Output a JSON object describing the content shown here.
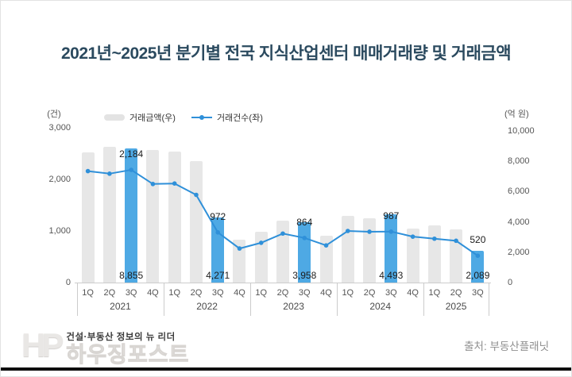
{
  "title": "2021년~2025년 분기별 전국 지식산업센터 매매거래량 및 거래금액",
  "legend": {
    "bar_label": "거래금액(우)",
    "line_label": "거래건수(좌)"
  },
  "axes": {
    "left_unit": "(건)",
    "right_unit": "(억 원)"
  },
  "chart_data": {
    "type": "bar",
    "subtype": "combo-bar-line",
    "title": "2021년~2025년 분기별 전국 지식산업센터 매매거래량 및 거래금액",
    "grid": false,
    "legend_position": "top-left",
    "year_groups": [
      {
        "year": "2021",
        "quarters": [
          "1Q",
          "2Q",
          "3Q",
          "4Q"
        ]
      },
      {
        "year": "2022",
        "quarters": [
          "1Q",
          "2Q",
          "3Q",
          "4Q"
        ]
      },
      {
        "year": "2023",
        "quarters": [
          "1Q",
          "2Q",
          "3Q",
          "4Q"
        ]
      },
      {
        "year": "2024",
        "quarters": [
          "1Q",
          "2Q",
          "3Q",
          "4Q"
        ]
      },
      {
        "year": "2025",
        "quarters": [
          "1Q",
          "2Q",
          "3Q"
        ]
      }
    ],
    "categories": [
      "2021 1Q",
      "2021 2Q",
      "2021 3Q",
      "2021 4Q",
      "2022 1Q",
      "2022 2Q",
      "2022 3Q",
      "2022 4Q",
      "2023 1Q",
      "2023 2Q",
      "2023 3Q",
      "2023 4Q",
      "2024 1Q",
      "2024 2Q",
      "2024 3Q",
      "2024 4Q",
      "2025 1Q",
      "2025 2Q",
      "2025 3Q"
    ],
    "series": [
      {
        "name": "거래금액(우)",
        "type": "bar",
        "axis": "right",
        "unit": "억 원",
        "color": "#e7e7e7",
        "highlight_color": "#4ea9e4",
        "values": [
          8600,
          8950,
          8855,
          8750,
          8650,
          8000,
          4271,
          2850,
          3350,
          4100,
          3958,
          3100,
          4400,
          4250,
          4493,
          3550,
          3750,
          3500,
          2089
        ]
      },
      {
        "name": "거래건수(좌)",
        "type": "line",
        "axis": "left",
        "unit": "건",
        "color": "#2f90d9",
        "values": [
          2160,
          2110,
          2184,
          1910,
          1920,
          1700,
          972,
          660,
          770,
          950,
          864,
          720,
          1000,
          985,
          987,
          890,
          850,
          810,
          520
        ]
      }
    ],
    "highlight_indices": [
      2,
      6,
      10,
      14,
      18
    ],
    "data_labels": {
      "counts": [
        "2,184",
        "972",
        "864",
        "987",
        "520"
      ],
      "amounts": [
        "8,855",
        "4,271",
        "3,958",
        "4,493",
        "2,089"
      ]
    },
    "left_axis": {
      "label": "(건)",
      "range": [
        0,
        3000
      ],
      "ticks": [
        0,
        1000,
        2000,
        3000
      ]
    },
    "right_axis": {
      "label": "(억 원)",
      "range": [
        0,
        10000
      ],
      "ticks": [
        0,
        2000,
        4000,
        6000,
        8000,
        10000
      ]
    }
  },
  "footer": {
    "logo_monogram": "HP",
    "logo_tagline": "건설·부동산 정보의 뉴 리더",
    "logo_brand": "하우징포스트",
    "source": "출처: 부동산플래닛"
  },
  "colors": {
    "title": "#2b4a5f",
    "bar_gray": "#e7e7e7",
    "bar_highlight": "#4ea9e4",
    "line_blue": "#2f90d9",
    "axis_gray": "#cccccc"
  }
}
